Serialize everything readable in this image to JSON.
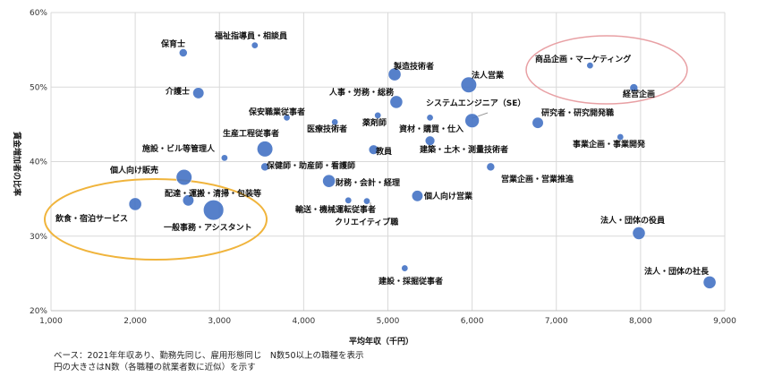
{
  "chart_data": {
    "type": "scatter",
    "title": "",
    "xlabel": "平均年収（千円）",
    "ylabel": "賃金増加者の比率",
    "xlim": [
      1000,
      9000
    ],
    "ylim": [
      20,
      60
    ],
    "x_ticks": [
      "1,000",
      "2,000",
      "3,000",
      "4,000",
      "5,000",
      "6,000",
      "7,000",
      "8,000",
      "9,000"
    ],
    "y_ticks": [
      "20%",
      "30%",
      "40%",
      "50%",
      "60%"
    ],
    "grid": true,
    "point_color": "#4472C4",
    "points": [
      {
        "label": "保育士",
        "x": 2570,
        "y": 54.6,
        "size": 3
      },
      {
        "label": "福祉指導員・相談員",
        "x": 3420,
        "y": 55.6,
        "size": 2
      },
      {
        "label": "介護士",
        "x": 2750,
        "y": 49.2,
        "size": 5
      },
      {
        "label": "製造技術者",
        "x": 5080,
        "y": 51.7,
        "size": 6
      },
      {
        "label": "法人営業",
        "x": 5960,
        "y": 50.3,
        "size": 8
      },
      {
        "label": "商品企画・マーケティング",
        "x": 7400,
        "y": 52.9,
        "size": 2
      },
      {
        "label": "経営企画",
        "x": 7920,
        "y": 49.9,
        "size": 3
      },
      {
        "label": "人事・労務・総務",
        "x": 5100,
        "y": 48.0,
        "size": 6
      },
      {
        "label": "保安職業従事者",
        "x": 3800,
        "y": 45.9,
        "size": 2
      },
      {
        "label": "薬剤師",
        "x": 4880,
        "y": 46.2,
        "size": 2
      },
      {
        "label": "医療技術者",
        "x": 4370,
        "y": 45.3,
        "size": 2
      },
      {
        "label": "システムエンジニア（SE）",
        "x": 6000,
        "y": 45.5,
        "size": 7
      },
      {
        "label": "資材・購買・仕入",
        "x": 5500,
        "y": 45.9,
        "size": 2
      },
      {
        "label": "研究者・研究開発職",
        "x": 6780,
        "y": 45.2,
        "size": 5
      },
      {
        "label": "生産工程従事者",
        "x": 3540,
        "y": 41.7,
        "size": 8
      },
      {
        "label": "施設・ビル等管理人",
        "x": 3060,
        "y": 40.5,
        "size": 2
      },
      {
        "label": "教員",
        "x": 4830,
        "y": 41.6,
        "size": 4
      },
      {
        "label": "建築・土木・測量技術者",
        "x": 5500,
        "y": 42.8,
        "size": 4
      },
      {
        "label": "事業企画・事業開発",
        "x": 7760,
        "y": 43.3,
        "size": 2
      },
      {
        "label": "保健師・助産師・看護師",
        "x": 3540,
        "y": 39.3,
        "size": 3
      },
      {
        "label": "個人向け販売",
        "x": 2580,
        "y": 37.9,
        "size": 8
      },
      {
        "label": "営業企画・営業推進",
        "x": 6220,
        "y": 39.3,
        "size": 3
      },
      {
        "label": "財務・会計・経理",
        "x": 4300,
        "y": 37.4,
        "size": 6
      },
      {
        "label": "配達・運搬・清掃・包装等",
        "x": 2630,
        "y": 34.8,
        "size": 5
      },
      {
        "label": "輸送・機械運転従事者",
        "x": 4530,
        "y": 34.8,
        "size": 2
      },
      {
        "label": "クリエイティブ職",
        "x": 4750,
        "y": 34.7,
        "size": 2
      },
      {
        "label": "個人向け営業",
        "x": 5350,
        "y": 35.4,
        "size": 5
      },
      {
        "label": "飲食・宿泊サービス",
        "x": 2000,
        "y": 34.3,
        "size": 6
      },
      {
        "label": "一般事務・アシスタント",
        "x": 2930,
        "y": 33.5,
        "size": 11
      },
      {
        "label": "法人・団体の役員",
        "x": 7980,
        "y": 30.4,
        "size": 6
      },
      {
        "label": "建設・採掘従事者",
        "x": 5200,
        "y": 25.7,
        "size": 2
      },
      {
        "label": "法人・団体の社長",
        "x": 8820,
        "y": 23.8,
        "size": 6
      }
    ],
    "highlight_ellipses": [
      {
        "color": "#F0B43C",
        "around": "低年収・低比率"
      },
      {
        "color": "#E8A0A4",
        "around": "高年収・高比率"
      }
    ]
  },
  "footnote": {
    "line1": "ベース：2021年年収あり、勤務先同じ、雇用形態同じ　N数50以上の職種を表示",
    "line2": "円の大きさはN数（各職種の就業者数に近似）を示す"
  }
}
